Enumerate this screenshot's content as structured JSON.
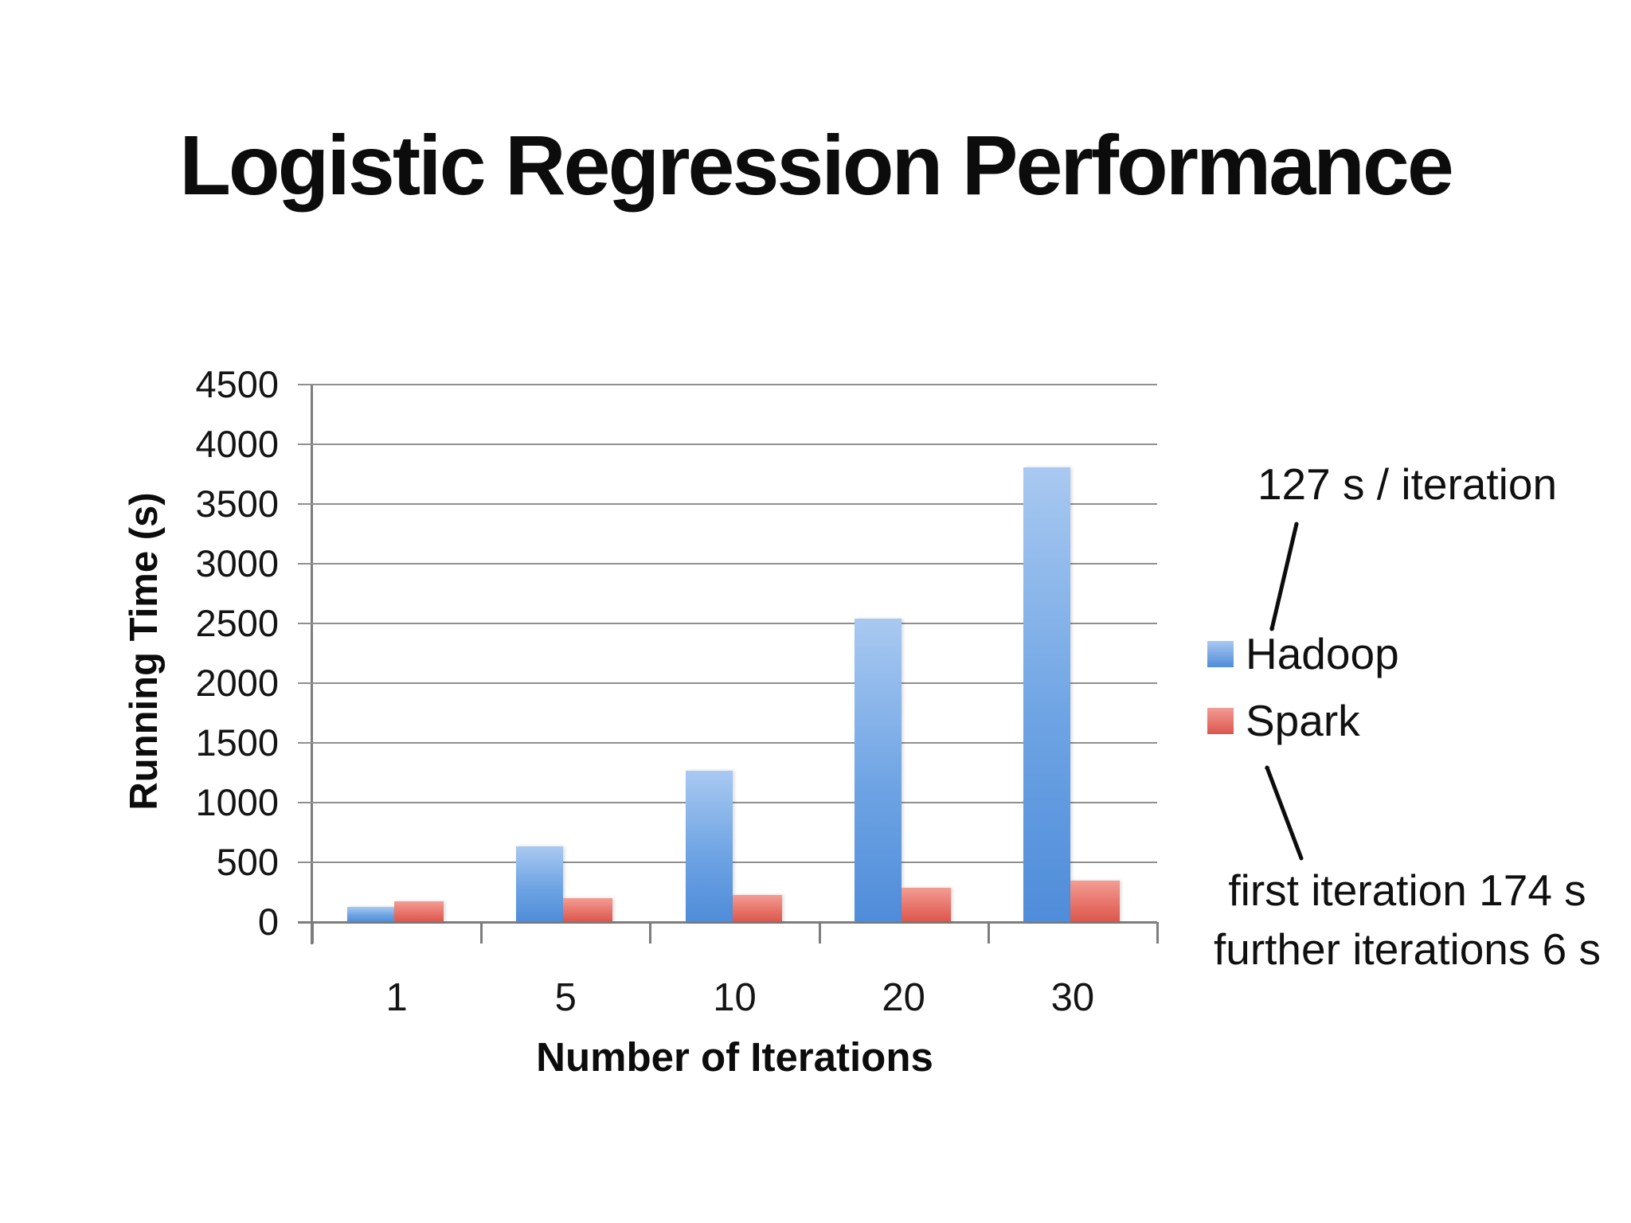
{
  "slide": {
    "title": "Logistic Regression Performance"
  },
  "chart_data": {
    "type": "bar",
    "title": "Logistic Regression Performance",
    "categories": [
      "1",
      "5",
      "10",
      "20",
      "30"
    ],
    "series": [
      {
        "name": "Hadoop",
        "values": [
          127,
          635,
          1270,
          2540,
          3810
        ],
        "color": "#6ea4e4",
        "color_top": "#a9c9f1",
        "color_bottom": "#4f8cd9"
      },
      {
        "name": "Spark",
        "values": [
          174,
          198,
          228,
          288,
          348
        ],
        "color": "#e8746a",
        "color_top": "#f29d94",
        "color_bottom": "#db564c"
      }
    ],
    "xlabel": "Number of Iterations",
    "ylabel": "Running Time (s)",
    "ylim": [
      0,
      4500
    ],
    "yticks": [
      0,
      500,
      1000,
      1500,
      2000,
      2500,
      3000,
      3500,
      4000,
      4500
    ],
    "grid": true,
    "legend_position": "right"
  },
  "annotations": {
    "hadoop_note": "127 s / iteration",
    "spark_note_line1": "first iteration 174 s",
    "spark_note_line2": "further iterations 6 s"
  },
  "colors": {
    "background": "#ffffff",
    "gridline": "#8f8f8f",
    "axis": "#7d7d7d",
    "text": "#101010"
  }
}
